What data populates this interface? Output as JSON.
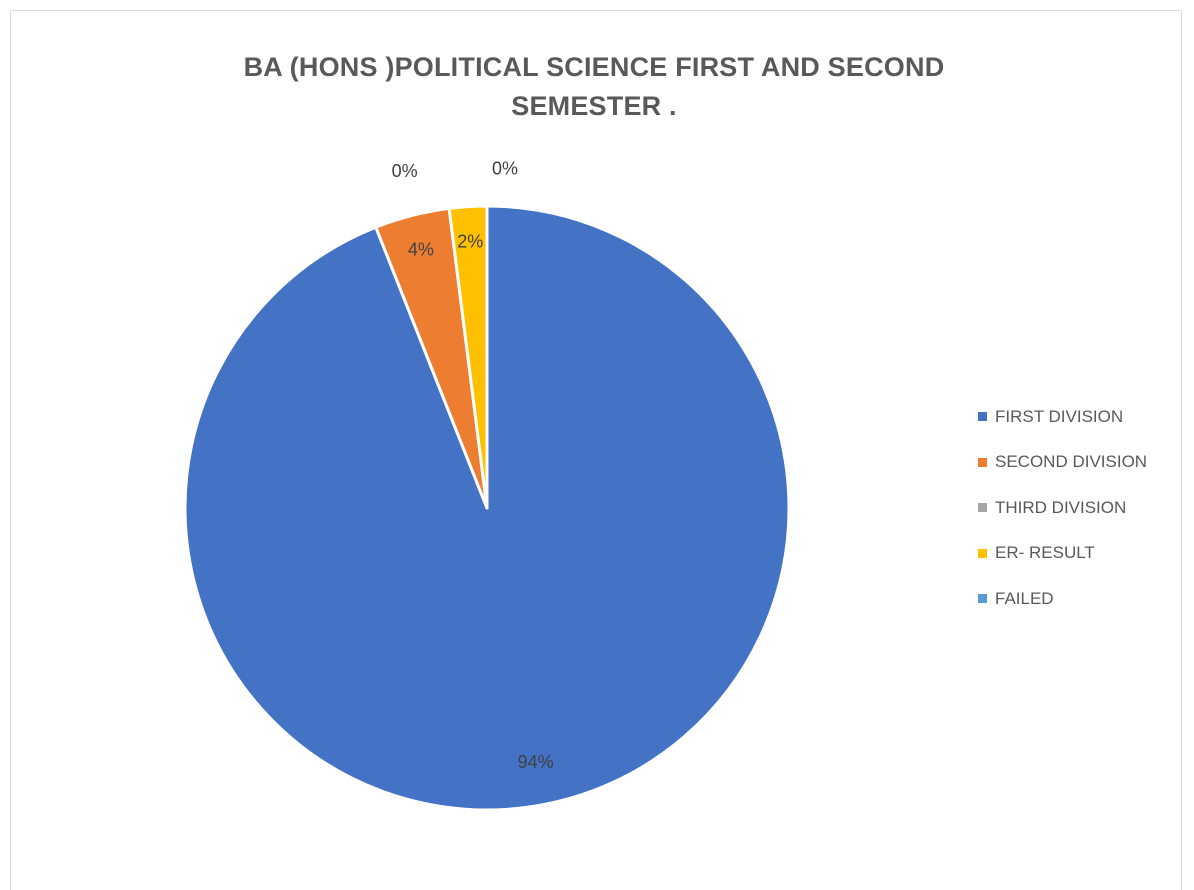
{
  "chart_data": {
    "type": "pie",
    "title": [
      "BA (HONS )POLITICAL SCIENCE FIRST AND SECOND",
      "SEMESTER ."
    ],
    "slices": [
      {
        "label": "FIRST DIVISION",
        "value": 94,
        "value_label": "94%",
        "color": "#4472C4"
      },
      {
        "label": "SECOND DIVISION",
        "value": 4,
        "value_label": "4%",
        "color": "#ED7D31"
      },
      {
        "label": "THIRD DIVISION",
        "value": 0,
        "value_label": "0%",
        "color": "#A5A5A5"
      },
      {
        "label": "ER- RESULT",
        "value": 2,
        "value_label": "2%",
        "color": "#FFC000"
      },
      {
        "label": "FAILED",
        "value": 0,
        "value_label": "0%",
        "color": "#5B9BD5"
      }
    ],
    "start": "12 o'clock",
    "direction": "clockwise",
    "legend_position": "right"
  }
}
